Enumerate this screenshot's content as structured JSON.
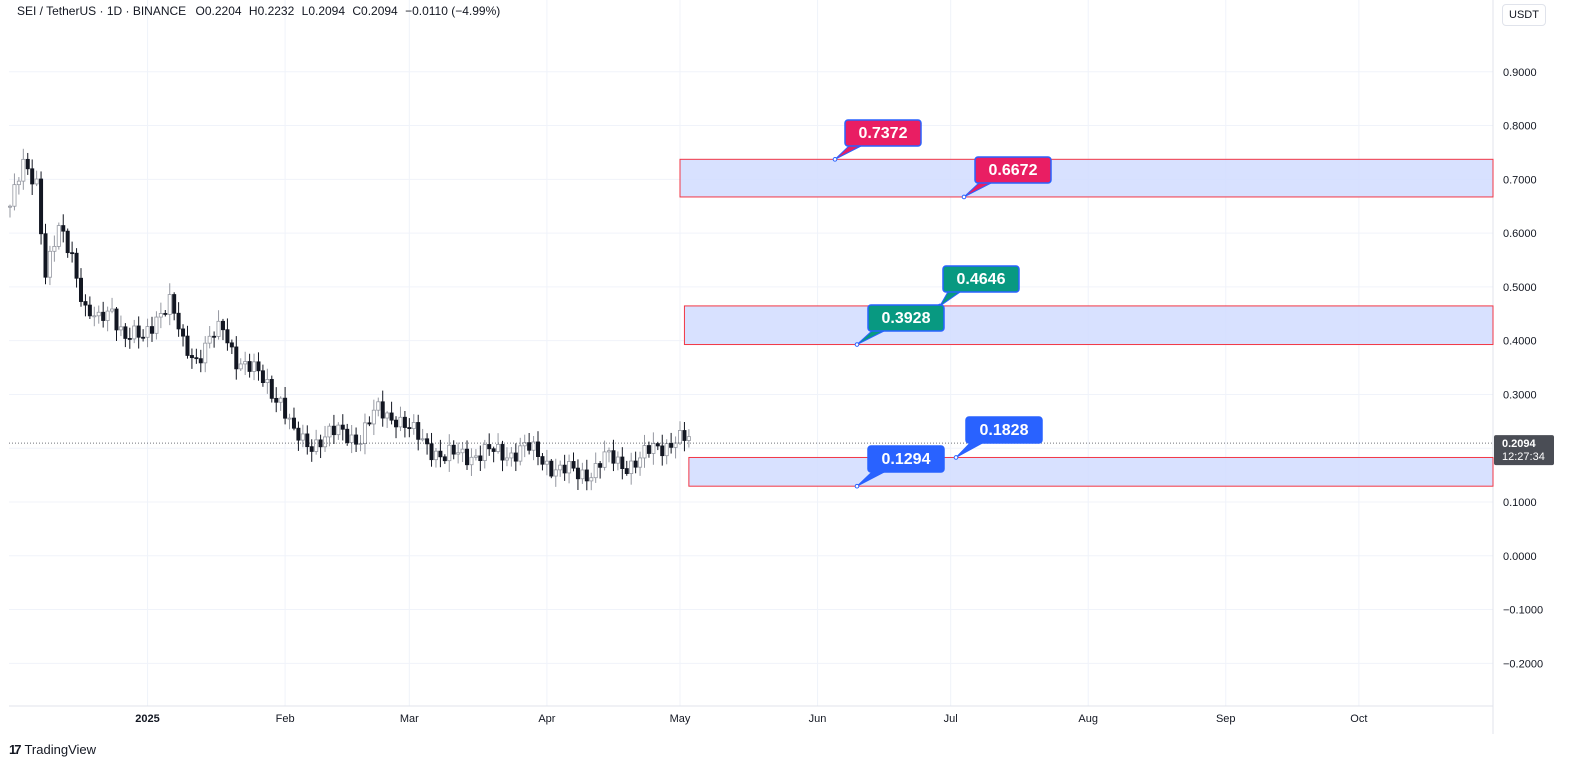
{
  "legend": {
    "symbol": "SEI / TetherUS · 1D · BINANCE",
    "open_label": "O",
    "open": "0.2204",
    "high_label": "H",
    "high": "0.2232",
    "low_label": "L",
    "low": "0.2094",
    "close_label": "C",
    "close": "0.2094",
    "change": "−0.0110 (−4.99%)"
  },
  "currency": "USDT",
  "brand": {
    "name": "TradingView",
    "icon": "tradingview-logo-icon"
  },
  "chart_data": {
    "type": "candlestick",
    "xlabel": "",
    "ylabel": "",
    "ylim": [
      -0.29,
      0.98
    ],
    "grid": true,
    "y_ticks": [
      "0.9000",
      "0.8000",
      "0.7000",
      "0.6000",
      "0.5000",
      "0.4000",
      "0.3000",
      "0.1000",
      "0.0000",
      "−0.1000",
      "−0.2000"
    ],
    "y_tick_values": [
      0.9,
      0.8,
      0.7,
      0.6,
      0.5,
      0.4,
      0.3,
      0.1,
      0.0,
      -0.1,
      -0.2
    ],
    "x_ticks": [
      {
        "label": "2025",
        "date": "2025-01-01",
        "bold": true
      },
      {
        "label": "Feb",
        "date": "2025-02-01"
      },
      {
        "label": "Mar",
        "date": "2025-03-01"
      },
      {
        "label": "Apr",
        "date": "2025-04-01"
      },
      {
        "label": "May",
        "date": "2025-05-01"
      },
      {
        "label": "Jun",
        "date": "2025-06-01"
      },
      {
        "label": "Jul",
        "date": "2025-07-01"
      },
      {
        "label": "Aug",
        "date": "2025-08-01"
      },
      {
        "label": "Sep",
        "date": "2025-09-01"
      },
      {
        "label": "Oct",
        "date": "2025-10-01"
      }
    ],
    "x_range": [
      "2024-12-01",
      "2025-10-30"
    ],
    "last_price": {
      "value": "0.2094",
      "countdown": "12:27:34"
    },
    "close_path": [
      [
        "2024-12-01",
        0.65
      ],
      [
        "2024-12-04",
        0.72
      ],
      [
        "2024-12-07",
        0.7
      ],
      [
        "2024-12-09",
        0.53
      ],
      [
        "2024-12-12",
        0.6
      ],
      [
        "2024-12-15",
        0.56
      ],
      [
        "2024-12-18",
        0.46
      ],
      [
        "2024-12-21",
        0.43
      ],
      [
        "2024-12-24",
        0.46
      ],
      [
        "2024-12-27",
        0.41
      ],
      [
        "2024-12-31",
        0.4
      ],
      [
        "2025-01-03",
        0.45
      ],
      [
        "2025-01-06",
        0.47
      ],
      [
        "2025-01-09",
        0.39
      ],
      [
        "2025-01-12",
        0.37
      ],
      [
        "2025-01-15",
        0.4
      ],
      [
        "2025-01-18",
        0.42
      ],
      [
        "2025-01-21",
        0.37
      ],
      [
        "2025-01-25",
        0.34
      ],
      [
        "2025-01-28",
        0.32
      ],
      [
        "2025-01-31",
        0.29
      ],
      [
        "2025-02-03",
        0.22
      ],
      [
        "2025-02-06",
        0.21
      ],
      [
        "2025-02-10",
        0.22
      ],
      [
        "2025-02-14",
        0.23
      ],
      [
        "2025-02-18",
        0.22
      ],
      [
        "2025-02-22",
        0.27
      ],
      [
        "2025-02-26",
        0.26
      ],
      [
        "2025-03-01",
        0.23
      ],
      [
        "2025-03-05",
        0.21
      ],
      [
        "2025-03-09",
        0.18
      ],
      [
        "2025-03-13",
        0.19
      ],
      [
        "2025-03-18",
        0.19
      ],
      [
        "2025-03-22",
        0.19
      ],
      [
        "2025-03-27",
        0.2
      ],
      [
        "2025-03-31",
        0.18
      ],
      [
        "2025-04-04",
        0.16
      ],
      [
        "2025-04-08",
        0.15
      ],
      [
        "2025-04-11",
        0.16
      ],
      [
        "2025-04-14",
        0.18
      ],
      [
        "2025-04-18",
        0.17
      ],
      [
        "2025-04-22",
        0.18
      ],
      [
        "2025-04-26",
        0.2
      ],
      [
        "2025-04-30",
        0.22
      ],
      [
        "2025-05-03",
        0.2094
      ]
    ],
    "zones": [
      {
        "name": "zone-top",
        "low": 0.6672,
        "high": 0.7372,
        "start": "2025-05-01",
        "low_label": "0.6672",
        "high_label": "0.7372",
        "color": "#e91e63"
      },
      {
        "name": "zone-middle",
        "low": 0.3928,
        "high": 0.4646,
        "start": "2025-05-02",
        "low_label": "0.3928",
        "high_label": "0.4646",
        "color": "#089981"
      },
      {
        "name": "zone-bottom",
        "low": 0.1294,
        "high": 0.1828,
        "start": "2025-05-03",
        "low_label": "0.1294",
        "high_label": "0.1828",
        "color": "#2962ff"
      }
    ]
  },
  "colors": {
    "grid": "#f0f3fa",
    "axis_text": "#131722",
    "candle_up": "#9598a1",
    "candle_down": "#131722",
    "zone_fill": "#d1dcff",
    "zone_border": "#f23645",
    "callout_border": "#2962ff",
    "price_tag": "#4a4d55"
  }
}
